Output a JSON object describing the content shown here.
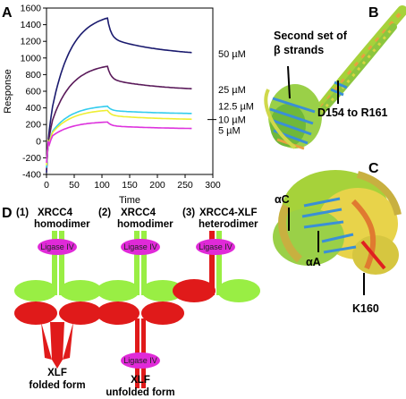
{
  "panels": {
    "a": "A",
    "b": "B",
    "c": "C",
    "d": "D"
  },
  "colors": {
    "xrcc4": "#99ee44",
    "xlf": "#e01a1a",
    "ligase": "#e02ad8"
  },
  "chart_data": {
    "type": "line",
    "xlabel": "Time",
    "ylabel": "Response",
    "xlim": [
      0,
      300
    ],
    "ylim": [
      -400,
      1600
    ],
    "xticks": [
      0,
      50,
      100,
      150,
      200,
      250,
      300
    ],
    "yticks": [
      -400,
      -200,
      0,
      200,
      400,
      600,
      800,
      1000,
      1200,
      1400,
      1600
    ],
    "grid": false,
    "series": [
      {
        "name": "50 µM",
        "color": "#1a1a6e",
        "peak": 1480,
        "end": 1050,
        "peak_t": 110
      },
      {
        "name": "25 µM",
        "color": "#5a1a5a",
        "peak": 900,
        "end": 620,
        "peak_t": 110
      },
      {
        "name": "12.5 µM",
        "color": "#33ccee",
        "peak": 420,
        "end": 330,
        "peak_t": 110
      },
      {
        "name": "10 µM",
        "color": "#eeee33",
        "peak": 370,
        "end": 260,
        "peak_t": 110
      },
      {
        "name": "5 µM",
        "color": "#dd33dd",
        "peak": 230,
        "end": 150,
        "peak_t": 110
      }
    ]
  },
  "panel_b": {
    "label1_line1": "Second set of",
    "label1_line2": "β strands",
    "label2": "D154 to R161"
  },
  "panel_c": {
    "label_ac": "αC",
    "label_aa": "αA",
    "label_k": "K160"
  },
  "panel_d": {
    "m1_num": "(1)",
    "m1_line1": "XRCC4",
    "m1_line2": "homodimer",
    "m2_num": "(2)",
    "m2_line1": "XRCC4",
    "m2_line2": "homodimer",
    "m3_num": "(3)",
    "m3_line1": "XRCC4-XLF",
    "m3_line2": "heterodimer",
    "ligase": "Ligase IV",
    "foot1_line1": "XLF",
    "foot1_line2": "folded form",
    "foot2_line1": "XLF",
    "foot2_line2": "unfolded form"
  }
}
